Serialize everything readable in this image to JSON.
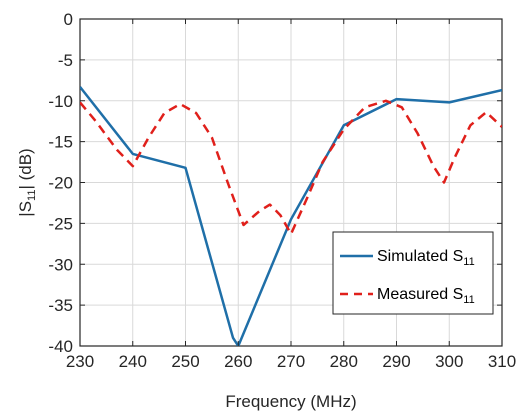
{
  "colors": {
    "simulated": "#1f6fa8",
    "measured": "#e0201b",
    "axis": "#262626",
    "grid": "#d9d9d9"
  },
  "chart_data": {
    "type": "line",
    "xlabel": "Frequency (MHz)",
    "ylabel_prefix": "|S",
    "ylabel_sub": "11",
    "ylabel_suffix": "| (dB)",
    "xlim": [
      230,
      310
    ],
    "ylim": [
      -40,
      0
    ],
    "xticks": [
      230,
      240,
      250,
      260,
      270,
      280,
      290,
      300,
      310
    ],
    "yticks": [
      0,
      -5,
      -10,
      -15,
      -20,
      -25,
      -30,
      -35,
      -40
    ],
    "grid": true,
    "legend_position": "bottom-right",
    "series": [
      {
        "name": "Simulated S11",
        "legend_main": "Simulated S",
        "legend_sub": "11",
        "style": "solid",
        "x": [
          230,
          240,
          250,
          259,
          260,
          270,
          280,
          290,
          300,
          310
        ],
        "y": [
          -8.3,
          -16.5,
          -18.2,
          -39.0,
          -40.0,
          -24.5,
          -13.0,
          -9.8,
          -10.2,
          -8.7
        ]
      },
      {
        "name": "Measured S11",
        "legend_main": "Measured S",
        "legend_sub": "11",
        "style": "dashed",
        "x": [
          230,
          233,
          237,
          240,
          243,
          246,
          249,
          252,
          255,
          258,
          261,
          264,
          266,
          268,
          270,
          273,
          276,
          280,
          284,
          288,
          291,
          294,
          297,
          299,
          301,
          304,
          307,
          310
        ],
        "y": [
          -10.2,
          -12.5,
          -16.0,
          -18.0,
          -14.5,
          -11.5,
          -10.4,
          -11.5,
          -14.5,
          -20.0,
          -25.2,
          -23.5,
          -22.7,
          -24.0,
          -26.3,
          -22.0,
          -17.5,
          -13.5,
          -10.8,
          -10.0,
          -10.8,
          -14.0,
          -18.0,
          -20.0,
          -17.0,
          -13.0,
          -11.4,
          -13.2
        ]
      }
    ]
  }
}
